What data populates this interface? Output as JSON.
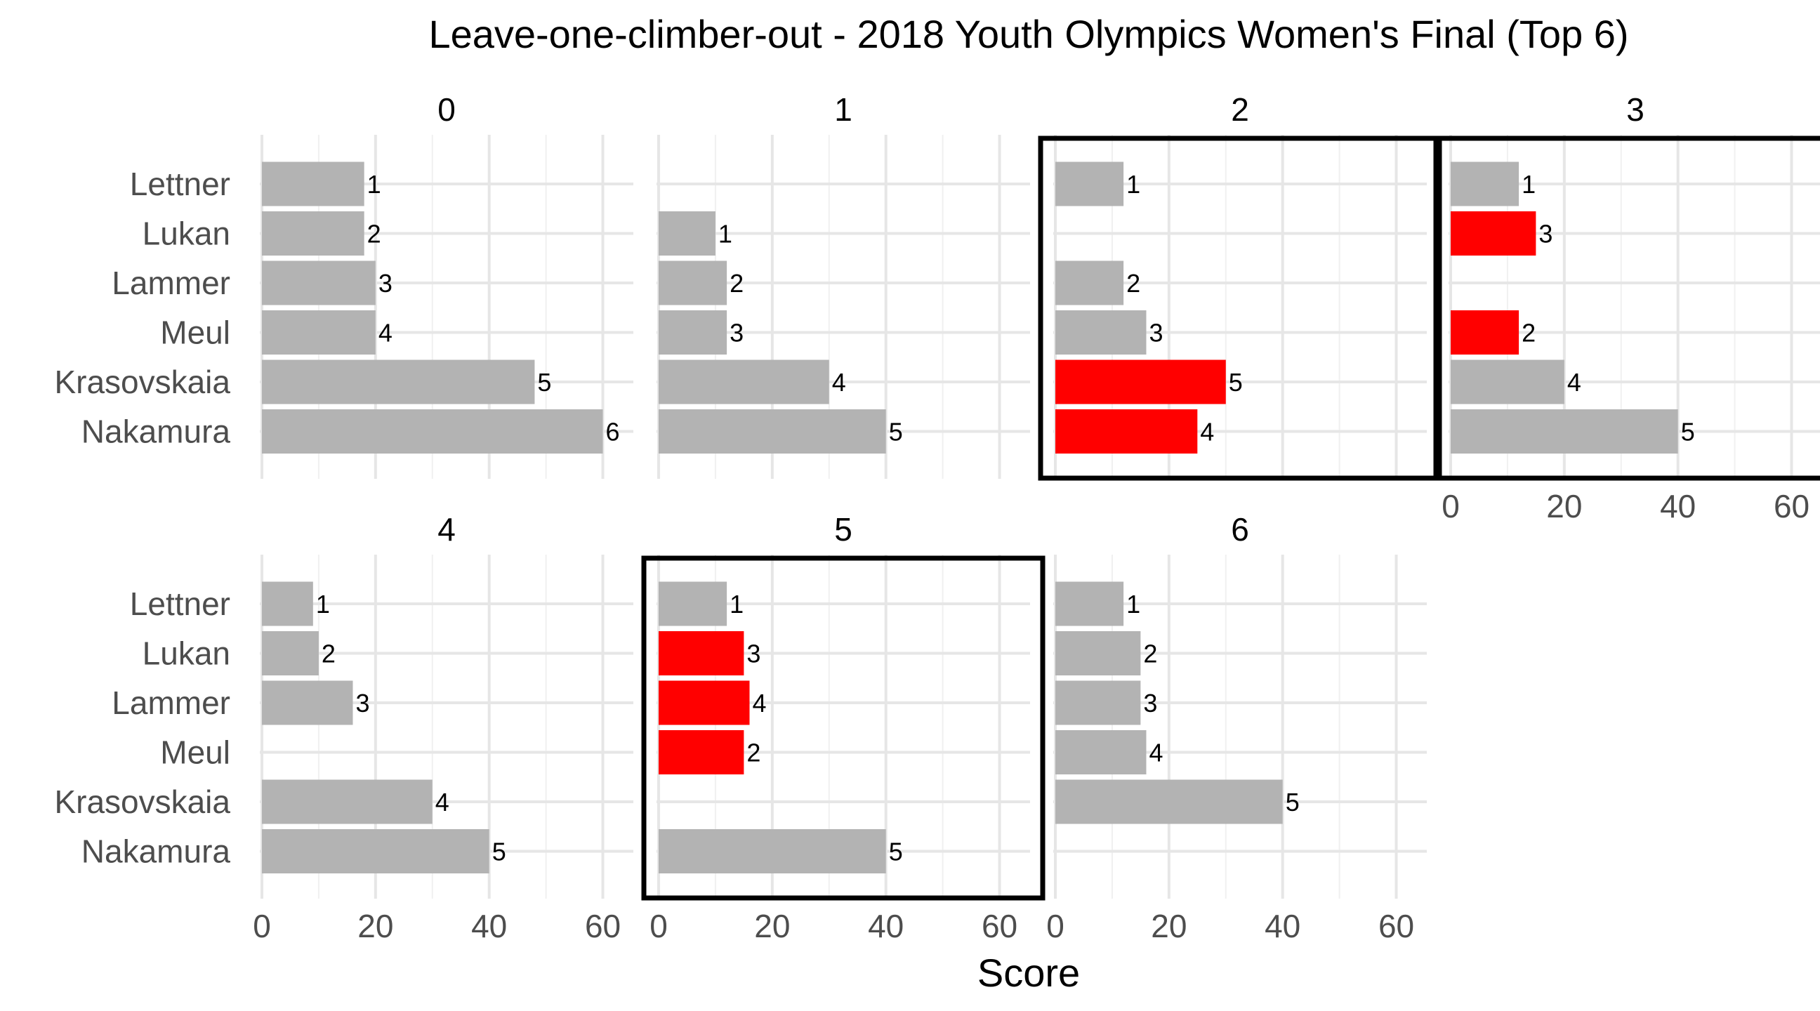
{
  "chart_data": {
    "type": "bar",
    "title": "Leave-one-climber-out - 2018 Youth Olympics Women's Final (Top 6)",
    "xlabel": "Score",
    "ylabel": "",
    "xlim": [
      0,
      65
    ],
    "x_ticks": [
      0,
      20,
      40,
      60
    ],
    "categories": [
      "Lettner",
      "Lukan",
      "Lammer",
      "Meul",
      "Krasovskaia",
      "Nakamura"
    ],
    "grid": true,
    "colors": {
      "default": "#b3b3b3",
      "changed": "#ff0000",
      "highlight_border": "#000000"
    },
    "panels": [
      {
        "label": "0",
        "highlighted": false,
        "bars": [
          {
            "climber": "Lettner",
            "score": 18,
            "rank": 1,
            "changed": false
          },
          {
            "climber": "Lukan",
            "score": 18,
            "rank": 2,
            "changed": false
          },
          {
            "climber": "Lammer",
            "score": 20,
            "rank": 3,
            "changed": false
          },
          {
            "climber": "Meul",
            "score": 20,
            "rank": 4,
            "changed": false
          },
          {
            "climber": "Krasovskaia",
            "score": 48,
            "rank": 5,
            "changed": false
          },
          {
            "climber": "Nakamura",
            "score": 60,
            "rank": 6,
            "changed": false
          }
        ]
      },
      {
        "label": "1",
        "highlighted": false,
        "bars": [
          {
            "climber": "Lukan",
            "score": 10,
            "rank": 1,
            "changed": false
          },
          {
            "climber": "Lammer",
            "score": 12,
            "rank": 2,
            "changed": false
          },
          {
            "climber": "Meul",
            "score": 12,
            "rank": 3,
            "changed": false
          },
          {
            "climber": "Krasovskaia",
            "score": 30,
            "rank": 4,
            "changed": false
          },
          {
            "climber": "Nakamura",
            "score": 40,
            "rank": 5,
            "changed": false
          }
        ]
      },
      {
        "label": "2",
        "highlighted": true,
        "bars": [
          {
            "climber": "Lettner",
            "score": 12,
            "rank": 1,
            "changed": false
          },
          {
            "climber": "Lammer",
            "score": 12,
            "rank": 2,
            "changed": false
          },
          {
            "climber": "Meul",
            "score": 16,
            "rank": 3,
            "changed": false
          },
          {
            "climber": "Krasovskaia",
            "score": 30,
            "rank": 5,
            "changed": true
          },
          {
            "climber": "Nakamura",
            "score": 25,
            "rank": 4,
            "changed": true
          }
        ]
      },
      {
        "label": "3",
        "highlighted": true,
        "bars": [
          {
            "climber": "Lettner",
            "score": 12,
            "rank": 1,
            "changed": false
          },
          {
            "climber": "Lukan",
            "score": 15,
            "rank": 3,
            "changed": true
          },
          {
            "climber": "Meul",
            "score": 12,
            "rank": 2,
            "changed": true
          },
          {
            "climber": "Krasovskaia",
            "score": 20,
            "rank": 4,
            "changed": false
          },
          {
            "climber": "Nakamura",
            "score": 40,
            "rank": 5,
            "changed": false
          }
        ]
      },
      {
        "label": "4",
        "highlighted": false,
        "bars": [
          {
            "climber": "Lettner",
            "score": 9,
            "rank": 1,
            "changed": false
          },
          {
            "climber": "Lukan",
            "score": 10,
            "rank": 2,
            "changed": false
          },
          {
            "climber": "Lammer",
            "score": 16,
            "rank": 3,
            "changed": false
          },
          {
            "climber": "Krasovskaia",
            "score": 30,
            "rank": 4,
            "changed": false
          },
          {
            "climber": "Nakamura",
            "score": 40,
            "rank": 5,
            "changed": false
          }
        ]
      },
      {
        "label": "5",
        "highlighted": true,
        "bars": [
          {
            "climber": "Lettner",
            "score": 12,
            "rank": 1,
            "changed": false
          },
          {
            "climber": "Lukan",
            "score": 15,
            "rank": 3,
            "changed": true
          },
          {
            "climber": "Lammer",
            "score": 16,
            "rank": 4,
            "changed": true
          },
          {
            "climber": "Meul",
            "score": 15,
            "rank": 2,
            "changed": true
          },
          {
            "climber": "Nakamura",
            "score": 40,
            "rank": 5,
            "changed": false
          }
        ]
      },
      {
        "label": "6",
        "highlighted": false,
        "bars": [
          {
            "climber": "Lettner",
            "score": 12,
            "rank": 1,
            "changed": false
          },
          {
            "climber": "Lukan",
            "score": 15,
            "rank": 2,
            "changed": false
          },
          {
            "climber": "Lammer",
            "score": 15,
            "rank": 3,
            "changed": false
          },
          {
            "climber": "Meul",
            "score": 16,
            "rank": 4,
            "changed": false
          },
          {
            "climber": "Krasovskaia",
            "score": 40,
            "rank": 5,
            "changed": false
          }
        ]
      }
    ]
  }
}
